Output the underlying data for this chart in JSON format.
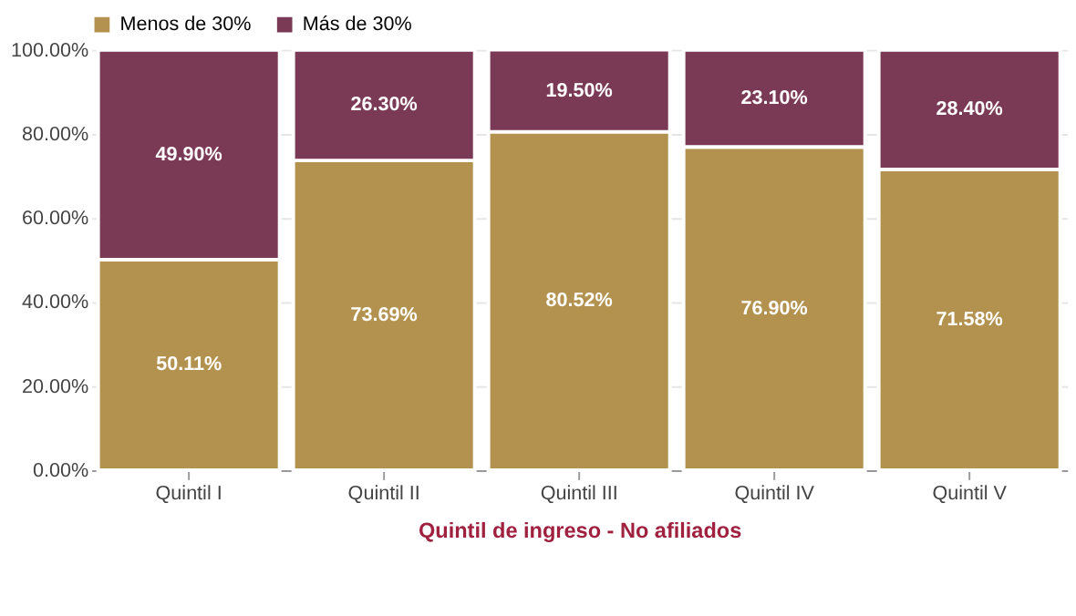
{
  "chart_data": {
    "type": "bar",
    "stacked": true,
    "xlabel": "Quintil de ingreso - No afiliados",
    "categories": [
      "Quintil I",
      "Quintil II",
      "Quintil III",
      "Quintil IV",
      "Quintil V"
    ],
    "series": [
      {
        "name": "Menos de 30%",
        "color": "#b3924f",
        "values": [
          50.11,
          73.69,
          80.52,
          76.9,
          71.58
        ],
        "value_labels": [
          "50.11%",
          "73.69%",
          "80.52%",
          "76.90%",
          "71.58%"
        ]
      },
      {
        "name": "Más de 30%",
        "color": "#7a3955",
        "values": [
          49.9,
          26.3,
          19.5,
          23.1,
          28.4
        ],
        "value_labels": [
          "49.90%",
          "26.30%",
          "19.50%",
          "23.10%",
          "28.40%"
        ]
      }
    ],
    "ylim": [
      0,
      100.02
    ],
    "yticks": [
      {
        "value": 0,
        "label": "0.00%"
      },
      {
        "value": 20,
        "label": "20.00%"
      },
      {
        "value": 40,
        "label": "40.00%"
      },
      {
        "value": 60,
        "label": "60.00%"
      },
      {
        "value": 80,
        "label": "80.00%"
      },
      {
        "value": 100,
        "label": "100.00%"
      }
    ],
    "grid": "y",
    "legend": "top left"
  }
}
